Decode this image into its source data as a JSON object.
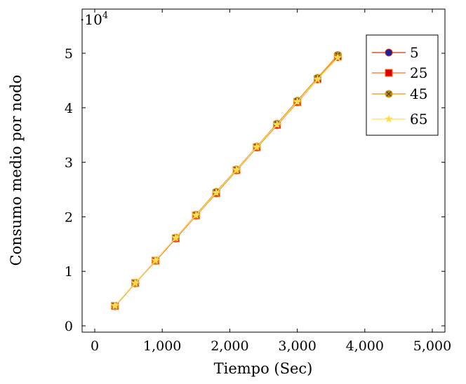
{
  "chart_data": {
    "type": "line",
    "xlabel": "Tiempo (Sec)",
    "ylabel": "Consumo medio por nodo",
    "y_multiplier_label": "·10",
    "y_multiplier_exponent": "4",
    "xlim": [
      0,
      5000
    ],
    "ylim": [
      0,
      5.5
    ],
    "x_ticks": [
      0,
      1000,
      2000,
      3000,
      4000,
      5000
    ],
    "x_tick_labels": [
      "0",
      "1,000",
      "2,000",
      "3,000",
      "4,000",
      "5,000"
    ],
    "y_ticks": [
      0,
      1,
      2,
      3,
      4,
      5
    ],
    "y_tick_labels": [
      "0",
      "1",
      "2",
      "3",
      "4",
      "5"
    ],
    "x": [
      300,
      600,
      900,
      1200,
      1500,
      1800,
      2100,
      2400,
      2700,
      3000,
      3300,
      3600
    ],
    "grid": false,
    "legend_position": "top-right",
    "series": [
      {
        "name": "5",
        "color": "#cc3300",
        "marker": "circle",
        "marker_fill": "#1f1f9e",
        "values": [
          0.36,
          0.78,
          1.19,
          1.6,
          2.02,
          2.43,
          2.85,
          3.27,
          3.68,
          4.1,
          4.52,
          4.93
        ]
      },
      {
        "name": "25",
        "color": "#ff6a1a",
        "marker": "square",
        "marker_fill": "#dd0000",
        "values": [
          0.365,
          0.785,
          1.195,
          1.605,
          2.025,
          2.435,
          2.855,
          3.275,
          3.685,
          4.105,
          4.525,
          4.94
        ]
      },
      {
        "name": "45",
        "color": "#e89a00",
        "marker": "circle-x",
        "marker_fill": "#b5842a",
        "values": [
          0.37,
          0.79,
          1.2,
          1.62,
          2.04,
          2.46,
          2.87,
          3.29,
          3.71,
          4.13,
          4.55,
          4.97
        ]
      },
      {
        "name": "65",
        "color": "#ffe066",
        "marker": "star",
        "marker_fill": "#ffd84d",
        "values": [
          0.37,
          0.785,
          1.2,
          1.615,
          2.03,
          2.44,
          2.86,
          3.28,
          3.69,
          4.11,
          4.52,
          4.92
        ]
      }
    ]
  }
}
